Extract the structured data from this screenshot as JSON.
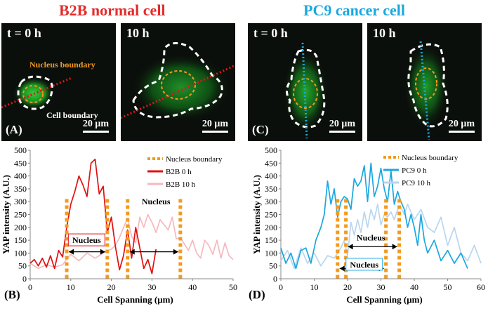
{
  "titles": {
    "left": "B2B normal cell",
    "right": "PC9 cancer  cell"
  },
  "micrographs": {
    "a1": {
      "time": "t = 0 h",
      "letter": "(A)",
      "scale": "20 μm",
      "annot1": "Nucleus boundary",
      "annot2": "Cell boundary"
    },
    "a2": {
      "time": "10 h",
      "scale": "20 μm"
    },
    "c1": {
      "time": "t = 0 h",
      "letter": "(C)",
      "scale": "20 μm"
    },
    "c2": {
      "time": "10 h",
      "scale": "20 μm"
    }
  },
  "colors": {
    "b2b_0h": "#e01010",
    "b2b_10h": "#f5b9bd",
    "pc9_0h": "#1ba7e0",
    "pc9_10h": "#b9d6ee",
    "nucleus": "#f39a1d",
    "cell_boundary": "#ffffff",
    "scan_line_b2b": "#e01515",
    "scan_line_pc9": "#19a8e0"
  },
  "chart_data": [
    {
      "id": "B",
      "type": "line",
      "panel_label": "(B)",
      "xlabel": "Cell Spanning (μm)",
      "ylabel": "YAP intensity (A.U.)",
      "xlim": [
        0,
        50
      ],
      "ylim": [
        0,
        500
      ],
      "xticks": [
        0,
        10,
        20,
        30,
        40,
        50
      ],
      "yticks": [
        0,
        50,
        100,
        150,
        200,
        250,
        300,
        350,
        400,
        450,
        500
      ],
      "legend": [
        "Nucleus boundary",
        "B2B 0 h",
        "B2B 10 h"
      ],
      "series": [
        {
          "name": "B2B 0 h",
          "color": "#e01010",
          "x": [
            0,
            1,
            2,
            3,
            4,
            5,
            6,
            7,
            8,
            9,
            10,
            11,
            12,
            13,
            14,
            15,
            16,
            17,
            18,
            19,
            20,
            21,
            22,
            23,
            24,
            25,
            26,
            27,
            28,
            29,
            30,
            31
          ],
          "y": [
            60,
            75,
            50,
            80,
            45,
            90,
            40,
            110,
            85,
            200,
            290,
            340,
            400,
            365,
            320,
            450,
            465,
            330,
            360,
            180,
            240,
            125,
            35,
            90,
            190,
            80,
            200,
            120,
            40,
            75,
            20,
            115
          ]
        },
        {
          "name": "B2B 10 h",
          "color": "#f5b9bd",
          "x": [
            0,
            2,
            4,
            6,
            8,
            10,
            12,
            14,
            16,
            18,
            20,
            21,
            22,
            23,
            24,
            25,
            26,
            27,
            28,
            29,
            30,
            31,
            32,
            33,
            34,
            35,
            36,
            37,
            38,
            39,
            40,
            41,
            42,
            43,
            44,
            45,
            46,
            47,
            48,
            49,
            50
          ],
          "y": [
            60,
            40,
            55,
            45,
            55,
            95,
            70,
            100,
            80,
            100,
            115,
            130,
            160,
            200,
            235,
            165,
            140,
            240,
            200,
            250,
            220,
            180,
            230,
            210,
            190,
            240,
            155,
            160,
            135,
            110,
            150,
            100,
            80,
            150,
            130,
            95,
            150,
            80,
            140,
            90,
            75
          ]
        }
      ],
      "nucleus_lines_x": [
        9,
        19,
        24,
        37
      ],
      "annotations": [
        {
          "text": "Nucleus",
          "x": 13.9,
          "y": 150,
          "boxed": true
        },
        {
          "text": "Nucleus",
          "x": 31,
          "y": 300,
          "boxed": false
        }
      ],
      "arrows": [
        {
          "x1": 9,
          "x2": 19,
          "y": 105
        },
        {
          "x1": 24,
          "x2": 37,
          "y": 105
        }
      ]
    },
    {
      "id": "D",
      "type": "line",
      "panel_label": "(D)",
      "xlabel": "Cell Spanning (μm)",
      "ylabel": "YAP intensity (A.U.)",
      "xlim": [
        0,
        60
      ],
      "ylim": [
        0,
        500
      ],
      "xticks": [
        0,
        10,
        20,
        30,
        40,
        50,
        60
      ],
      "yticks": [
        0,
        50,
        100,
        150,
        200,
        250,
        300,
        350,
        400,
        450,
        500
      ],
      "legend": [
        "Nucleus boundary",
        "PC9 0 h",
        "PC9 10 h"
      ],
      "series": [
        {
          "name": "PC9 0 h",
          "color": "#1ba7e0",
          "x": [
            0,
            1.5,
            3,
            4.5,
            6,
            7.5,
            9,
            10.5,
            12,
            13,
            14,
            15,
            16,
            17,
            18,
            19,
            20,
            21,
            22,
            23,
            24,
            25,
            26,
            27,
            28,
            29,
            30,
            31,
            32,
            33,
            34,
            35,
            36,
            37,
            38,
            39,
            40,
            41,
            42,
            43,
            44,
            46,
            48,
            50,
            52,
            54,
            56
          ],
          "y": [
            120,
            60,
            100,
            40,
            110,
            120,
            60,
            150,
            200,
            250,
            380,
            290,
            350,
            240,
            300,
            320,
            310,
            270,
            390,
            360,
            380,
            440,
            300,
            450,
            320,
            360,
            430,
            350,
            300,
            420,
            290,
            340,
            300,
            270,
            200,
            250,
            200,
            130,
            250,
            150,
            100,
            150,
            70,
            110,
            60,
            100,
            40
          ]
        },
        {
          "name": "PC9 10 h",
          "color": "#b9d6ee",
          "x": [
            0,
            2,
            4,
            6,
            8,
            10,
            12,
            14,
            16,
            17,
            18,
            19,
            20,
            21,
            22,
            23,
            24,
            25,
            26,
            27,
            28,
            29,
            30,
            31,
            32,
            33,
            34,
            35,
            36,
            37,
            38,
            40,
            42,
            44,
            46,
            48,
            50,
            52,
            54,
            56,
            58,
            60
          ],
          "y": [
            70,
            110,
            40,
            120,
            60,
            100,
            50,
            90,
            80,
            100,
            120,
            150,
            90,
            220,
            170,
            230,
            180,
            260,
            200,
            270,
            230,
            290,
            210,
            250,
            240,
            260,
            230,
            270,
            280,
            250,
            290,
            230,
            270,
            200,
            180,
            240,
            130,
            200,
            100,
            70,
            130,
            60
          ]
        }
      ],
      "nucleus_lines_x": [
        17,
        19.5,
        31.5,
        35.5
      ],
      "annotations": [
        {
          "text": "Nucleus",
          "x": 27,
          "y": 160,
          "boxed": false
        },
        {
          "text": "Nucleus",
          "x": 25,
          "y": 55,
          "boxed": true
        }
      ],
      "arrows": [
        {
          "x1": 19.5,
          "x2": 35.5,
          "y": 125
        },
        {
          "x1": 17,
          "x2": 31.5,
          "y": 40
        }
      ]
    }
  ]
}
